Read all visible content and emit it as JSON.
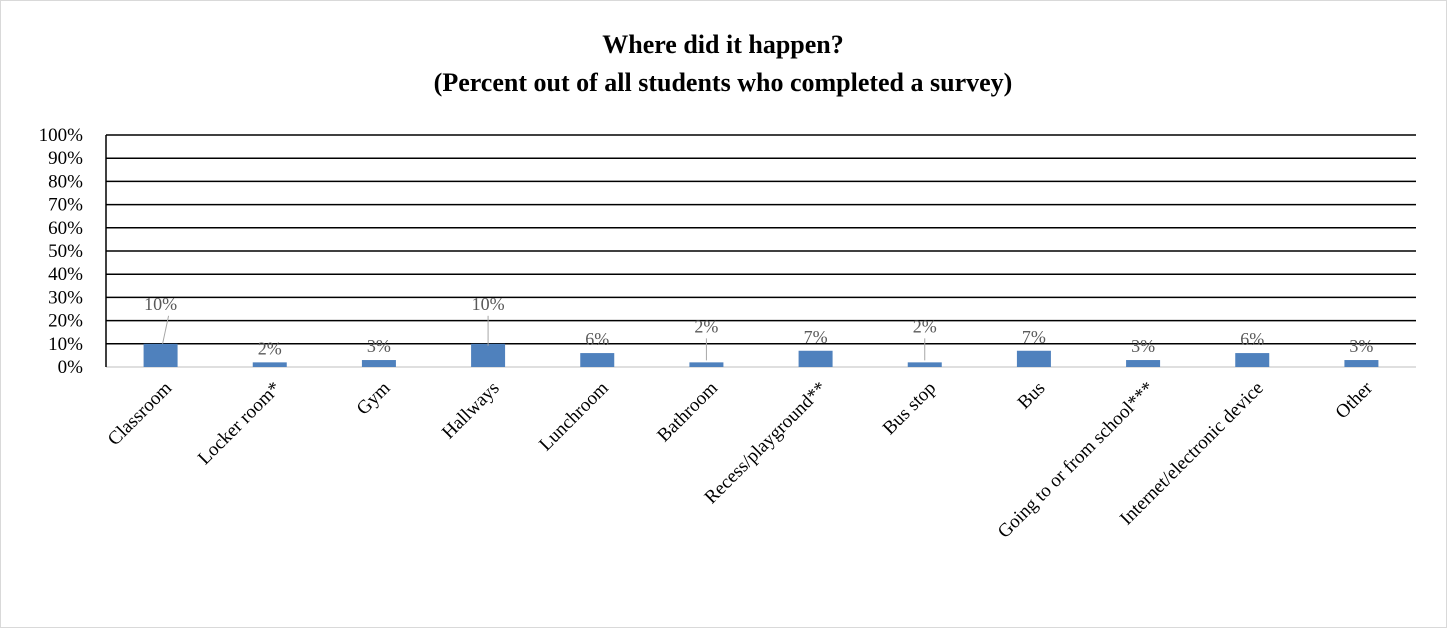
{
  "chart_data": {
    "type": "bar",
    "title": "Where did it happen?",
    "subtitle": "(Percent out of all students who completed a survey)",
    "categories": [
      "Classroom",
      "Locker room*",
      "Gym",
      "Hallways",
      "Lunchroom",
      "Bathroom",
      "Recess/playground**",
      "Bus stop",
      "Bus",
      "Going to or from school***",
      "Internet/electronic device",
      "Other"
    ],
    "values": [
      10,
      2,
      3,
      10,
      6,
      2,
      7,
      2,
      7,
      3,
      6,
      3
    ],
    "data_labels": [
      "10%",
      "2%",
      "3%",
      "10%",
      "6%",
      "2%",
      "7%",
      "2%",
      "7%",
      "3%",
      "6%",
      "3%"
    ],
    "ylim": [
      0,
      100
    ],
    "y_ticks": [
      "0%",
      "10%",
      "20%",
      "30%",
      "40%",
      "50%",
      "60%",
      "70%",
      "80%",
      "90%",
      "100%"
    ],
    "xlabel": "",
    "ylabel": "",
    "grid": true,
    "legend": "none",
    "bar_color": "#4f81bd"
  }
}
